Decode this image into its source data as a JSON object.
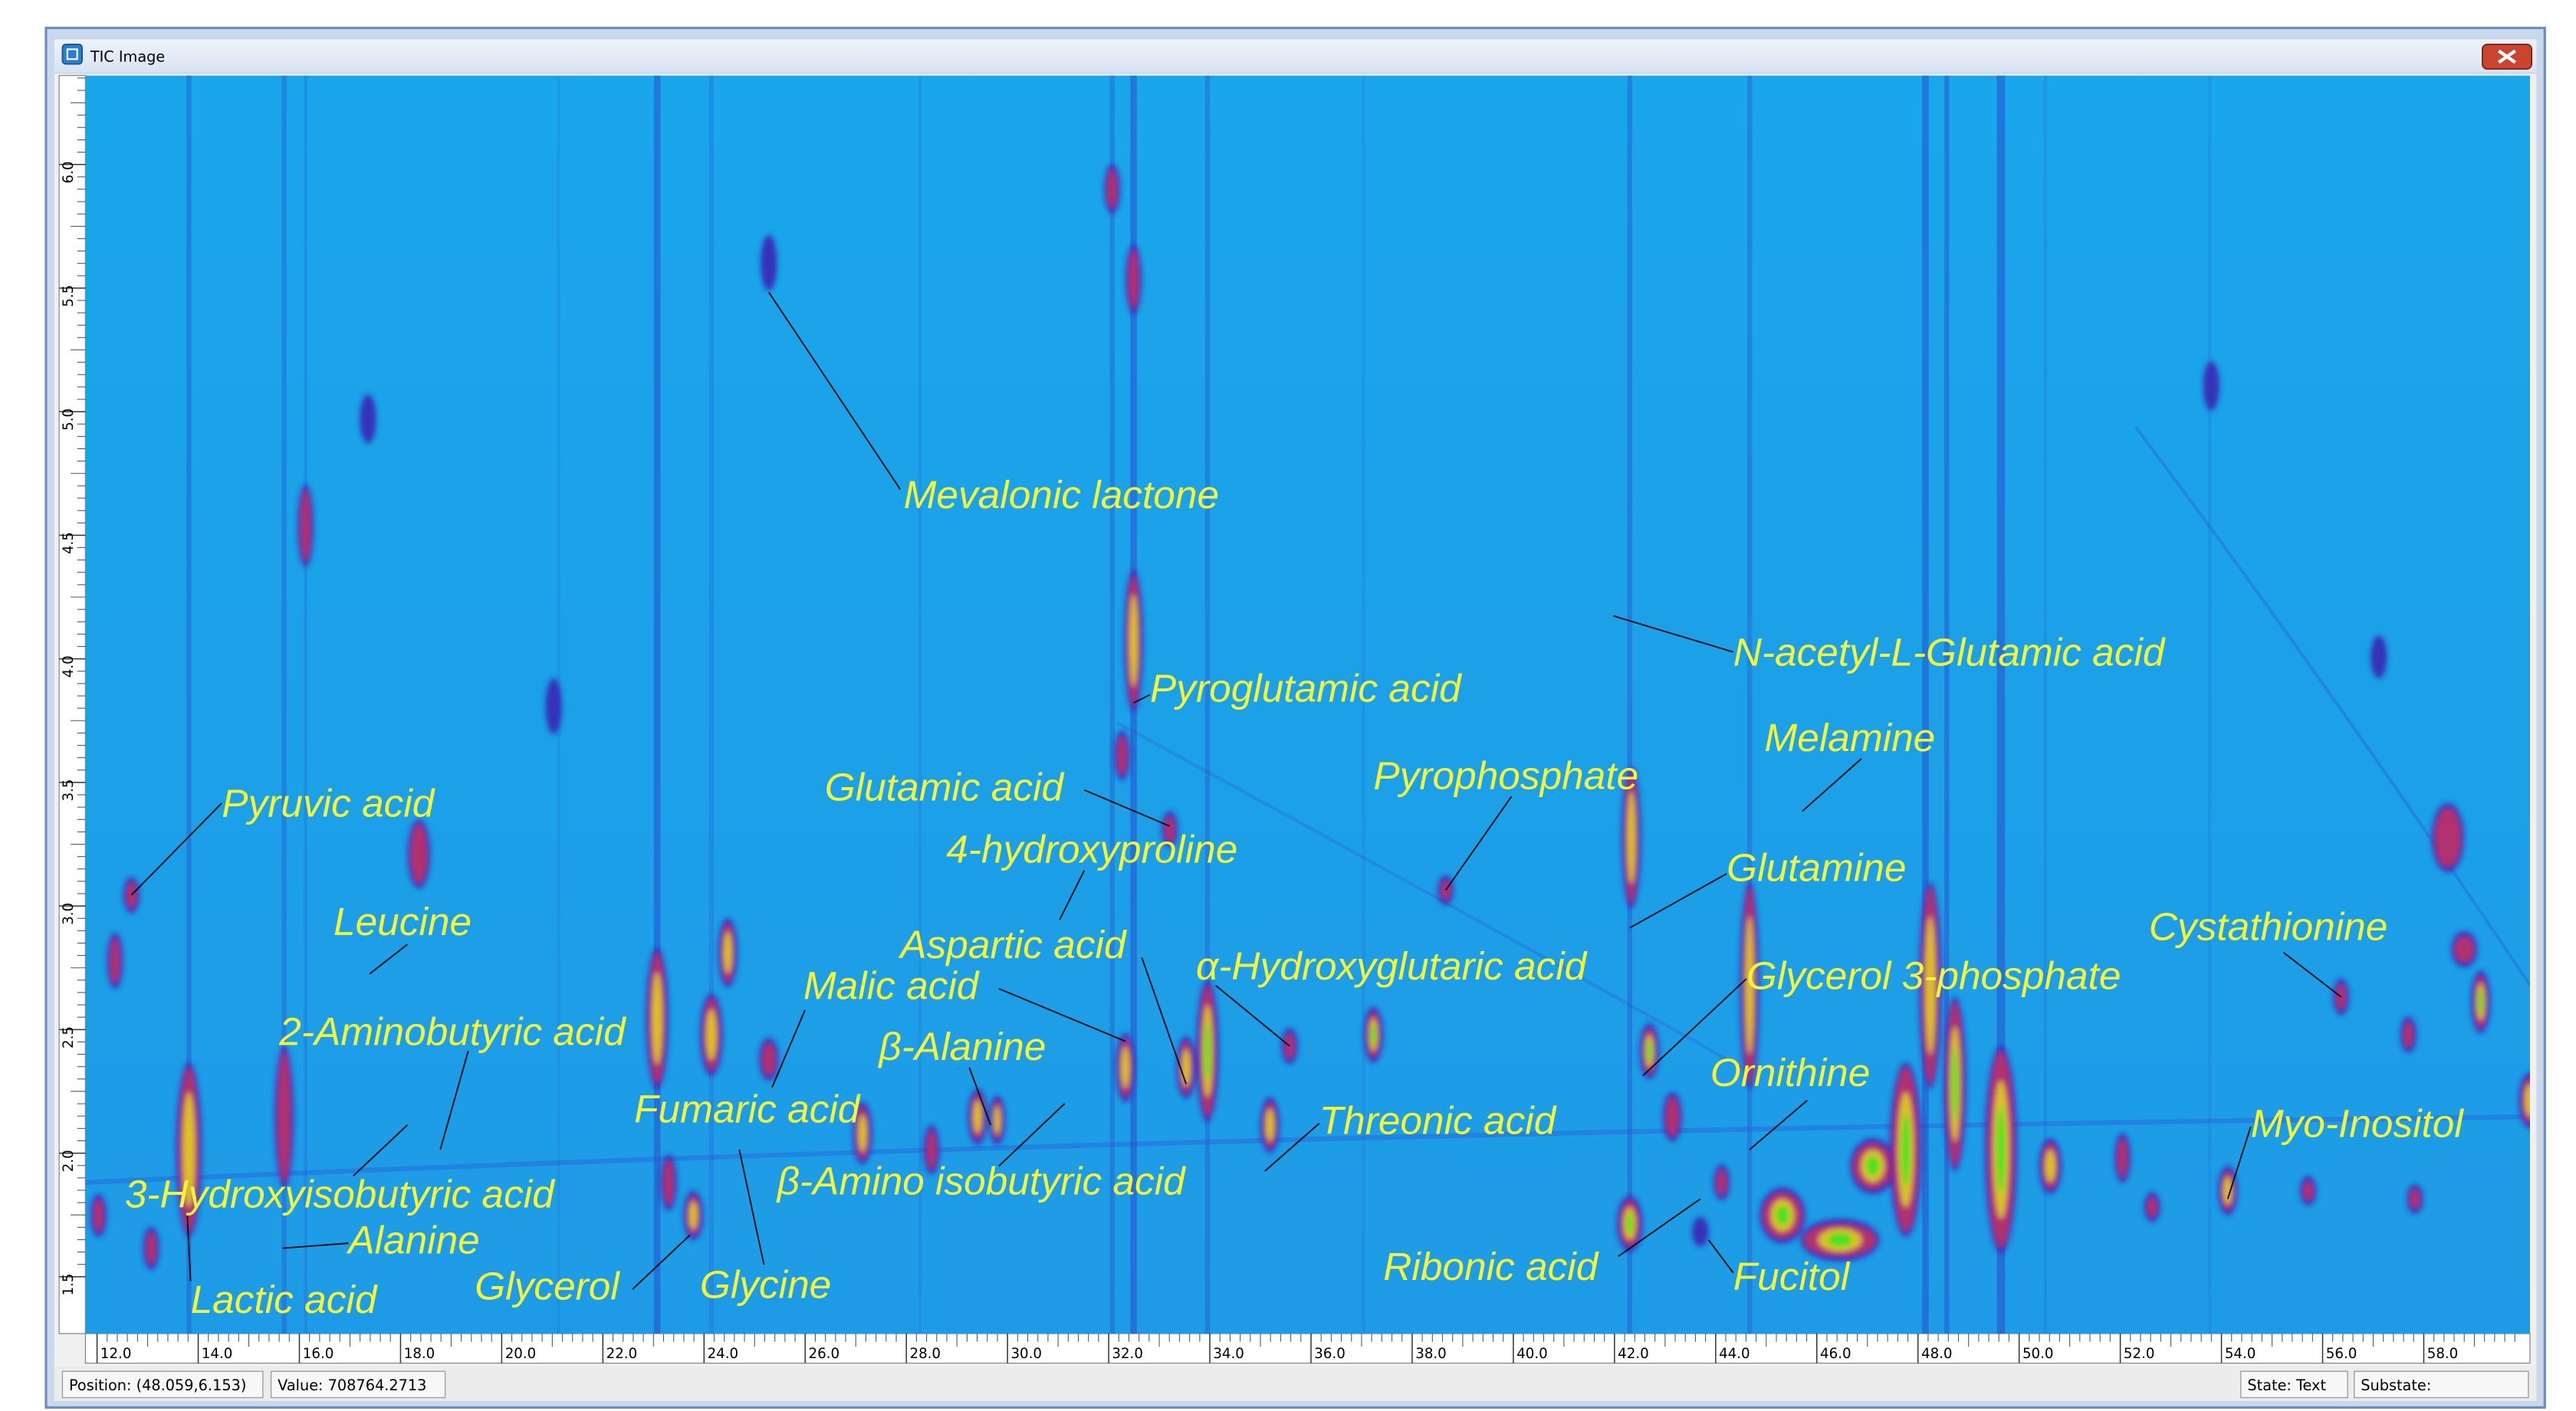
{
  "window": {
    "title": "TIC Image"
  },
  "axes": {
    "xlim": [
      11.77,
      60.1
    ],
    "xticks": [
      {
        "value": 12,
        "label": "12.0"
      },
      {
        "value": 14,
        "label": "14.0"
      },
      {
        "value": 16,
        "label": "16.0"
      },
      {
        "value": 18,
        "label": "18.0"
      },
      {
        "value": 20,
        "label": "20.0"
      },
      {
        "value": 22,
        "label": "22.0"
      },
      {
        "value": 24,
        "label": "24.0"
      },
      {
        "value": 26,
        "label": "26.0"
      },
      {
        "value": 28,
        "label": "28.0"
      },
      {
        "value": 30,
        "label": "30.0"
      },
      {
        "value": 32,
        "label": "32.0"
      },
      {
        "value": 34,
        "label": "34.0"
      },
      {
        "value": 36,
        "label": "36.0"
      },
      {
        "value": 38,
        "label": "38.0"
      },
      {
        "value": 40,
        "label": "40.0"
      },
      {
        "value": 42,
        "label": "42.0"
      },
      {
        "value": 44,
        "label": "44.0"
      },
      {
        "value": 46,
        "label": "46.0"
      },
      {
        "value": 48,
        "label": "48.0"
      },
      {
        "value": 50,
        "label": "50.0"
      },
      {
        "value": 52,
        "label": "52.0"
      },
      {
        "value": 54,
        "label": "54.0"
      },
      {
        "value": 56,
        "label": "56.0"
      },
      {
        "value": 58,
        "label": "58.0"
      }
    ],
    "ylim": [
      1.27,
      6.36
    ],
    "yticks": [
      1.5,
      {
        "value": 2,
        "label": "2.0"
      },
      2.5,
      {
        "value": 3,
        "label": "3.0"
      },
      3.5,
      {
        "value": 4,
        "label": "4.0"
      },
      4.5,
      {
        "value": 5,
        "label": "5.0"
      },
      5.5,
      {
        "value": 6,
        "label": "6.0"
      }
    ]
  },
  "annotations": [
    "Mevalonic lactone",
    "Pyroglutamic acid",
    "N-acetyl-L-Glutamic acid",
    "Melamine",
    "Pyruvic acid",
    "Glutamic acid",
    "Pyrophosphate",
    "4-hydroxyproline",
    "Glutamine",
    "Leucine",
    "Cystathionine",
    "Aspartic acid",
    "α-Hydroxyglutaric acid",
    "Glycerol 3-phosphate",
    "Malic acid",
    "2-Aminobutyric acid",
    "β-Alanine",
    "Ornithine",
    "Fumaric acid",
    "Threonic acid",
    "Myo-Inositol",
    "β-Amino isobutyric acid",
    "3-Hydroxyisobutyric acid",
    "Alanine",
    "Ribonic acid",
    "Fucitol",
    "Lactic acid",
    "Glycerol",
    "Glycine"
  ],
  "status_bar": {
    "position": "Position: (48.059,6.153)",
    "value": "Value: 708764.2713",
    "state": "State: Text",
    "substate": "Substate:"
  }
}
